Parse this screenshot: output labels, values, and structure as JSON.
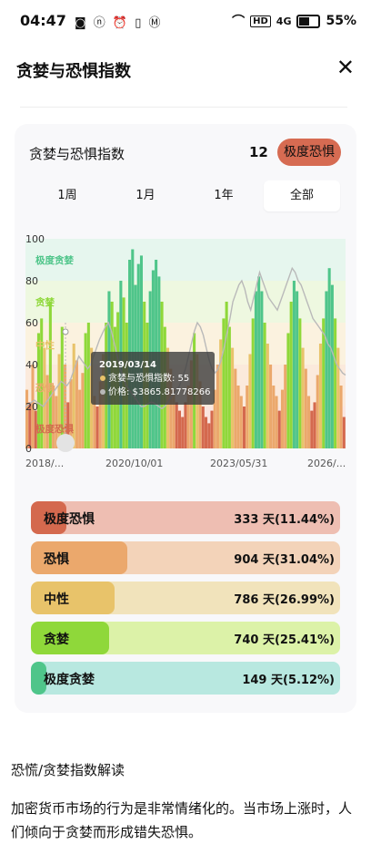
{
  "status": {
    "time": "04:47",
    "left_icons": "◙ ⓝ ⏰ ▯ Ⓜ",
    "network": "HD",
    "signal": "4G",
    "battery": "55%"
  },
  "header": {
    "title": "贪婪与恐惧指数"
  },
  "card": {
    "title": "贪婪与恐惧指数",
    "value": "12",
    "badge": "极度恐惧",
    "badge_color": "#d66b52",
    "tabs": [
      {
        "label": "1周"
      },
      {
        "label": "1月"
      },
      {
        "label": "1年"
      },
      {
        "label": "全部"
      }
    ],
    "active_tab": "全部"
  },
  "chart_data": {
    "type": "bar",
    "ylim": [
      0,
      100
    ],
    "y_ticks": [
      "100",
      "80",
      "60",
      "40",
      "20",
      "0"
    ],
    "x_ticks": [
      "2018/...",
      "2020/10/01",
      "2023/05/31",
      "2026/..."
    ],
    "zones": [
      "极度贪婪",
      "贪婪",
      "中性",
      "恐惧",
      "极度恐惧"
    ],
    "zone_colors": [
      "#4fc58a",
      "#8fd83a",
      "#e8c36a",
      "#eba86c",
      "#d4694e"
    ],
    "tooltip": {
      "date": "2019/03/14",
      "index_line": "贪婪与恐惧指数: 55",
      "price_line": "价格: $3865.81778266"
    },
    "series": [
      {
        "values": [
          28,
          22,
          40,
          18,
          55,
          62,
          48,
          35,
          70,
          30,
          25,
          45,
          58,
          40,
          22,
          33,
          50,
          42,
          28,
          36,
          55,
          60,
          48,
          25,
          20,
          32,
          45,
          60,
          75,
          70,
          58,
          65,
          80,
          72,
          60,
          90,
          95,
          78,
          88,
          92,
          70,
          60,
          75,
          85,
          90,
          82,
          70,
          58,
          48,
          38,
          28,
          22,
          18,
          15,
          22,
          30,
          42,
          55,
          45,
          32,
          20,
          15,
          12,
          18,
          28,
          40,
          52,
          62,
          70,
          58,
          48,
          38,
          30,
          25,
          20,
          30,
          45,
          62,
          75,
          82,
          75,
          60,
          50,
          40,
          30,
          25,
          18,
          28,
          40,
          55,
          70,
          80,
          75,
          62,
          48,
          38,
          25,
          18,
          22,
          35,
          50,
          62,
          75,
          86,
          78,
          62,
          48,
          30,
          15
        ]
      },
      {
        "values": [
          20,
          21,
          22,
          23,
          22,
          21,
          20,
          22,
          24,
          26,
          28,
          30,
          32,
          31,
          30,
          32,
          36,
          40,
          44,
          42,
          40,
          38,
          40,
          44,
          48,
          52,
          55,
          58,
          60,
          56,
          50,
          44,
          38,
          34,
          30,
          28,
          26,
          24,
          22,
          20,
          20,
          21,
          22,
          22,
          21,
          20,
          19,
          20,
          22,
          24,
          26,
          28,
          30,
          34,
          38,
          44,
          50,
          56,
          60,
          58,
          54,
          48,
          42,
          38,
          36,
          38,
          42,
          48,
          55,
          62,
          70,
          74,
          78,
          80,
          76,
          70,
          66,
          72,
          78,
          84,
          80,
          76,
          72,
          70,
          68,
          66,
          70,
          74,
          78,
          82,
          86,
          84,
          80,
          78,
          74,
          70,
          66,
          62,
          60,
          58,
          56,
          54,
          50,
          48,
          44,
          40,
          38,
          36,
          35
        ]
      }
    ]
  },
  "legend": [
    {
      "label": "极度恐惧",
      "stat": "333 天(11.44%)",
      "fraction": 0.1144,
      "bg": "#eebeb2",
      "fill": "#d4694e"
    },
    {
      "label": "恐惧",
      "stat": "904 天(31.04%)",
      "fraction": 0.3104,
      "bg": "#f3d3b9",
      "fill": "#eba86c"
    },
    {
      "label": "中性",
      "stat": "786 天(26.99%)",
      "fraction": 0.2699,
      "bg": "#f1e3bb",
      "fill": "#e8c36a"
    },
    {
      "label": "贪婪",
      "stat": "740 天(25.41%)",
      "fraction": 0.2541,
      "bg": "#dcf2a8",
      "fill": "#8fd83a"
    },
    {
      "label": "极度贪婪",
      "stat": "149 天(5.12%)",
      "fraction": 0.0512,
      "bg": "#b8e8e0",
      "fill": "#4fc58a"
    }
  ],
  "section": {
    "title": "恐慌/贪婪指数解读",
    "paragraph": "加密货币市场的行为是非常情绪化的。当市场上涨时，人们倾向于贪婪而形成错失恐惧。"
  }
}
